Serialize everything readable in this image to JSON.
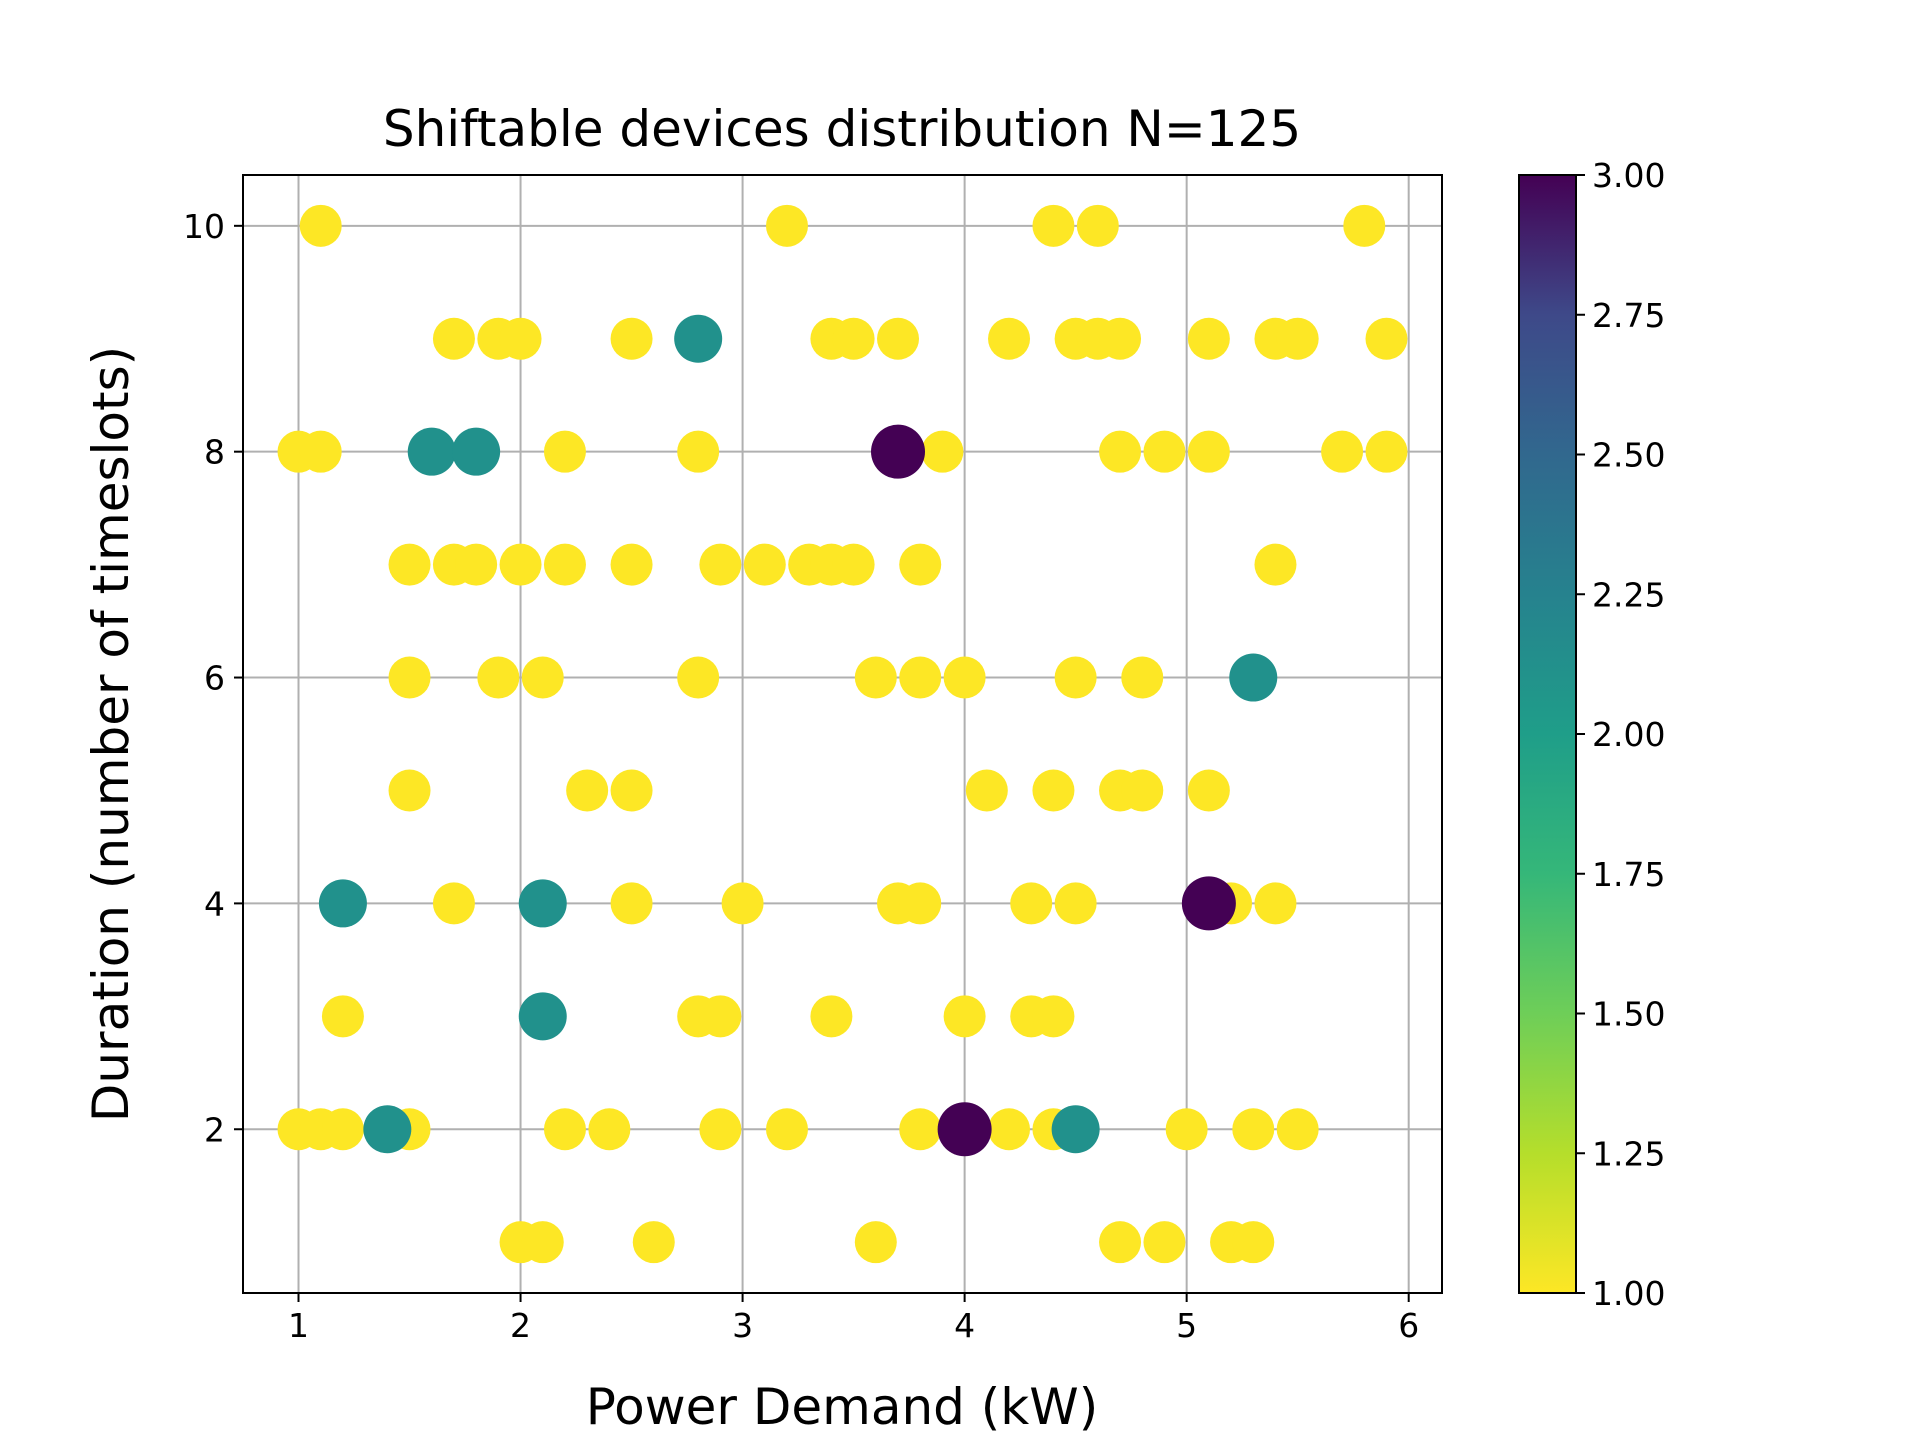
{
  "chart_data": {
    "type": "scatter",
    "title": "Shiftable devices distribution N=125",
    "xlabel": "Power Demand (kW)",
    "ylabel": "Duration (number of timeslots)",
    "xlim": [
      0.75,
      6.15
    ],
    "ylim": [
      0.55,
      10.45
    ],
    "xticks": [
      "1",
      "2",
      "3",
      "4",
      "5",
      "6"
    ],
    "yticks": [
      "2",
      "4",
      "6",
      "8",
      "10"
    ],
    "grid": true,
    "colorbar": {
      "range": [
        1.0,
        3.0
      ],
      "ticks": [
        "1.00",
        "1.25",
        "1.50",
        "1.75",
        "2.00",
        "2.25",
        "2.50",
        "2.75",
        "3.00"
      ],
      "colormap": "viridis",
      "low_color": "#fde725",
      "mid_color": "#21918c",
      "high_color": "#440154"
    },
    "points": [
      {
        "x": 1.1,
        "y": 10,
        "c": 1
      },
      {
        "x": 3.2,
        "y": 10,
        "c": 1
      },
      {
        "x": 4.4,
        "y": 10,
        "c": 1
      },
      {
        "x": 4.6,
        "y": 10,
        "c": 1
      },
      {
        "x": 5.8,
        "y": 10,
        "c": 1
      },
      {
        "x": 1.7,
        "y": 9,
        "c": 1
      },
      {
        "x": 1.9,
        "y": 9,
        "c": 1
      },
      {
        "x": 2.0,
        "y": 9,
        "c": 1
      },
      {
        "x": 2.5,
        "y": 9,
        "c": 1
      },
      {
        "x": 2.8,
        "y": 9,
        "c": 2
      },
      {
        "x": 3.4,
        "y": 9,
        "c": 1
      },
      {
        "x": 3.5,
        "y": 9,
        "c": 1
      },
      {
        "x": 3.7,
        "y": 9,
        "c": 1
      },
      {
        "x": 4.2,
        "y": 9,
        "c": 1
      },
      {
        "x": 4.5,
        "y": 9,
        "c": 1
      },
      {
        "x": 4.6,
        "y": 9,
        "c": 1
      },
      {
        "x": 4.7,
        "y": 9,
        "c": 1
      },
      {
        "x": 5.1,
        "y": 9,
        "c": 1
      },
      {
        "x": 5.4,
        "y": 9,
        "c": 1
      },
      {
        "x": 5.5,
        "y": 9,
        "c": 1
      },
      {
        "x": 5.9,
        "y": 9,
        "c": 1
      },
      {
        "x": 1.0,
        "y": 8,
        "c": 1
      },
      {
        "x": 1.1,
        "y": 8,
        "c": 1
      },
      {
        "x": 1.6,
        "y": 8,
        "c": 2
      },
      {
        "x": 1.8,
        "y": 8,
        "c": 2
      },
      {
        "x": 2.2,
        "y": 8,
        "c": 1
      },
      {
        "x": 2.8,
        "y": 8,
        "c": 1
      },
      {
        "x": 3.7,
        "y": 8,
        "c": 3
      },
      {
        "x": 3.9,
        "y": 8,
        "c": 1
      },
      {
        "x": 4.7,
        "y": 8,
        "c": 1
      },
      {
        "x": 4.9,
        "y": 8,
        "c": 1
      },
      {
        "x": 5.1,
        "y": 8,
        "c": 1
      },
      {
        "x": 5.7,
        "y": 8,
        "c": 1
      },
      {
        "x": 5.9,
        "y": 8,
        "c": 1
      },
      {
        "x": 1.5,
        "y": 7,
        "c": 1
      },
      {
        "x": 1.7,
        "y": 7,
        "c": 1
      },
      {
        "x": 1.8,
        "y": 7,
        "c": 1
      },
      {
        "x": 2.0,
        "y": 7,
        "c": 1
      },
      {
        "x": 2.2,
        "y": 7,
        "c": 1
      },
      {
        "x": 2.5,
        "y": 7,
        "c": 1
      },
      {
        "x": 2.9,
        "y": 7,
        "c": 1
      },
      {
        "x": 3.1,
        "y": 7,
        "c": 1
      },
      {
        "x": 3.3,
        "y": 7,
        "c": 1
      },
      {
        "x": 3.4,
        "y": 7,
        "c": 1
      },
      {
        "x": 3.5,
        "y": 7,
        "c": 1
      },
      {
        "x": 3.8,
        "y": 7,
        "c": 1
      },
      {
        "x": 5.4,
        "y": 7,
        "c": 1
      },
      {
        "x": 1.5,
        "y": 6,
        "c": 1
      },
      {
        "x": 1.9,
        "y": 6,
        "c": 1
      },
      {
        "x": 2.1,
        "y": 6,
        "c": 1
      },
      {
        "x": 2.8,
        "y": 6,
        "c": 1
      },
      {
        "x": 3.6,
        "y": 6,
        "c": 1
      },
      {
        "x": 3.8,
        "y": 6,
        "c": 1
      },
      {
        "x": 4.0,
        "y": 6,
        "c": 1
      },
      {
        "x": 4.5,
        "y": 6,
        "c": 1
      },
      {
        "x": 4.8,
        "y": 6,
        "c": 1
      },
      {
        "x": 5.3,
        "y": 6,
        "c": 2
      },
      {
        "x": 1.5,
        "y": 5,
        "c": 1
      },
      {
        "x": 2.3,
        "y": 5,
        "c": 1
      },
      {
        "x": 2.5,
        "y": 5,
        "c": 1
      },
      {
        "x": 4.1,
        "y": 5,
        "c": 1
      },
      {
        "x": 4.4,
        "y": 5,
        "c": 1
      },
      {
        "x": 4.7,
        "y": 5,
        "c": 1
      },
      {
        "x": 4.8,
        "y": 5,
        "c": 1
      },
      {
        "x": 5.1,
        "y": 5,
        "c": 1
      },
      {
        "x": 1.2,
        "y": 4,
        "c": 2
      },
      {
        "x": 1.7,
        "y": 4,
        "c": 1
      },
      {
        "x": 2.1,
        "y": 4,
        "c": 2
      },
      {
        "x": 2.5,
        "y": 4,
        "c": 1
      },
      {
        "x": 3.0,
        "y": 4,
        "c": 1
      },
      {
        "x": 3.7,
        "y": 4,
        "c": 1
      },
      {
        "x": 3.8,
        "y": 4,
        "c": 1
      },
      {
        "x": 4.3,
        "y": 4,
        "c": 1
      },
      {
        "x": 4.5,
        "y": 4,
        "c": 1
      },
      {
        "x": 5.1,
        "y": 4,
        "c": 3
      },
      {
        "x": 5.2,
        "y": 4,
        "c": 1
      },
      {
        "x": 5.4,
        "y": 4,
        "c": 1
      },
      {
        "x": 1.2,
        "y": 3,
        "c": 1
      },
      {
        "x": 2.1,
        "y": 3,
        "c": 2
      },
      {
        "x": 2.8,
        "y": 3,
        "c": 1
      },
      {
        "x": 2.9,
        "y": 3,
        "c": 1
      },
      {
        "x": 3.4,
        "y": 3,
        "c": 1
      },
      {
        "x": 4.0,
        "y": 3,
        "c": 1
      },
      {
        "x": 4.3,
        "y": 3,
        "c": 1
      },
      {
        "x": 4.4,
        "y": 3,
        "c": 1
      },
      {
        "x": 1.0,
        "y": 2,
        "c": 1
      },
      {
        "x": 1.1,
        "y": 2,
        "c": 1
      },
      {
        "x": 1.2,
        "y": 2,
        "c": 1
      },
      {
        "x": 1.5,
        "y": 2,
        "c": 1
      },
      {
        "x": 1.4,
        "y": 2,
        "c": 2
      },
      {
        "x": 2.2,
        "y": 2,
        "c": 1
      },
      {
        "x": 2.4,
        "y": 2,
        "c": 1
      },
      {
        "x": 2.9,
        "y": 2,
        "c": 1
      },
      {
        "x": 3.2,
        "y": 2,
        "c": 1
      },
      {
        "x": 3.8,
        "y": 2,
        "c": 1
      },
      {
        "x": 4.0,
        "y": 2,
        "c": 3
      },
      {
        "x": 4.2,
        "y": 2,
        "c": 1
      },
      {
        "x": 4.4,
        "y": 2,
        "c": 1
      },
      {
        "x": 4.5,
        "y": 2,
        "c": 2
      },
      {
        "x": 5.0,
        "y": 2,
        "c": 1
      },
      {
        "x": 5.3,
        "y": 2,
        "c": 1
      },
      {
        "x": 5.5,
        "y": 2,
        "c": 1
      },
      {
        "x": 2.0,
        "y": 1,
        "c": 1
      },
      {
        "x": 2.1,
        "y": 1,
        "c": 1
      },
      {
        "x": 2.6,
        "y": 1,
        "c": 1
      },
      {
        "x": 3.6,
        "y": 1,
        "c": 1
      },
      {
        "x": 4.7,
        "y": 1,
        "c": 1
      },
      {
        "x": 4.9,
        "y": 1,
        "c": 1
      },
      {
        "x": 5.2,
        "y": 1,
        "c": 1
      },
      {
        "x": 5.3,
        "y": 1,
        "c": 1
      }
    ]
  }
}
